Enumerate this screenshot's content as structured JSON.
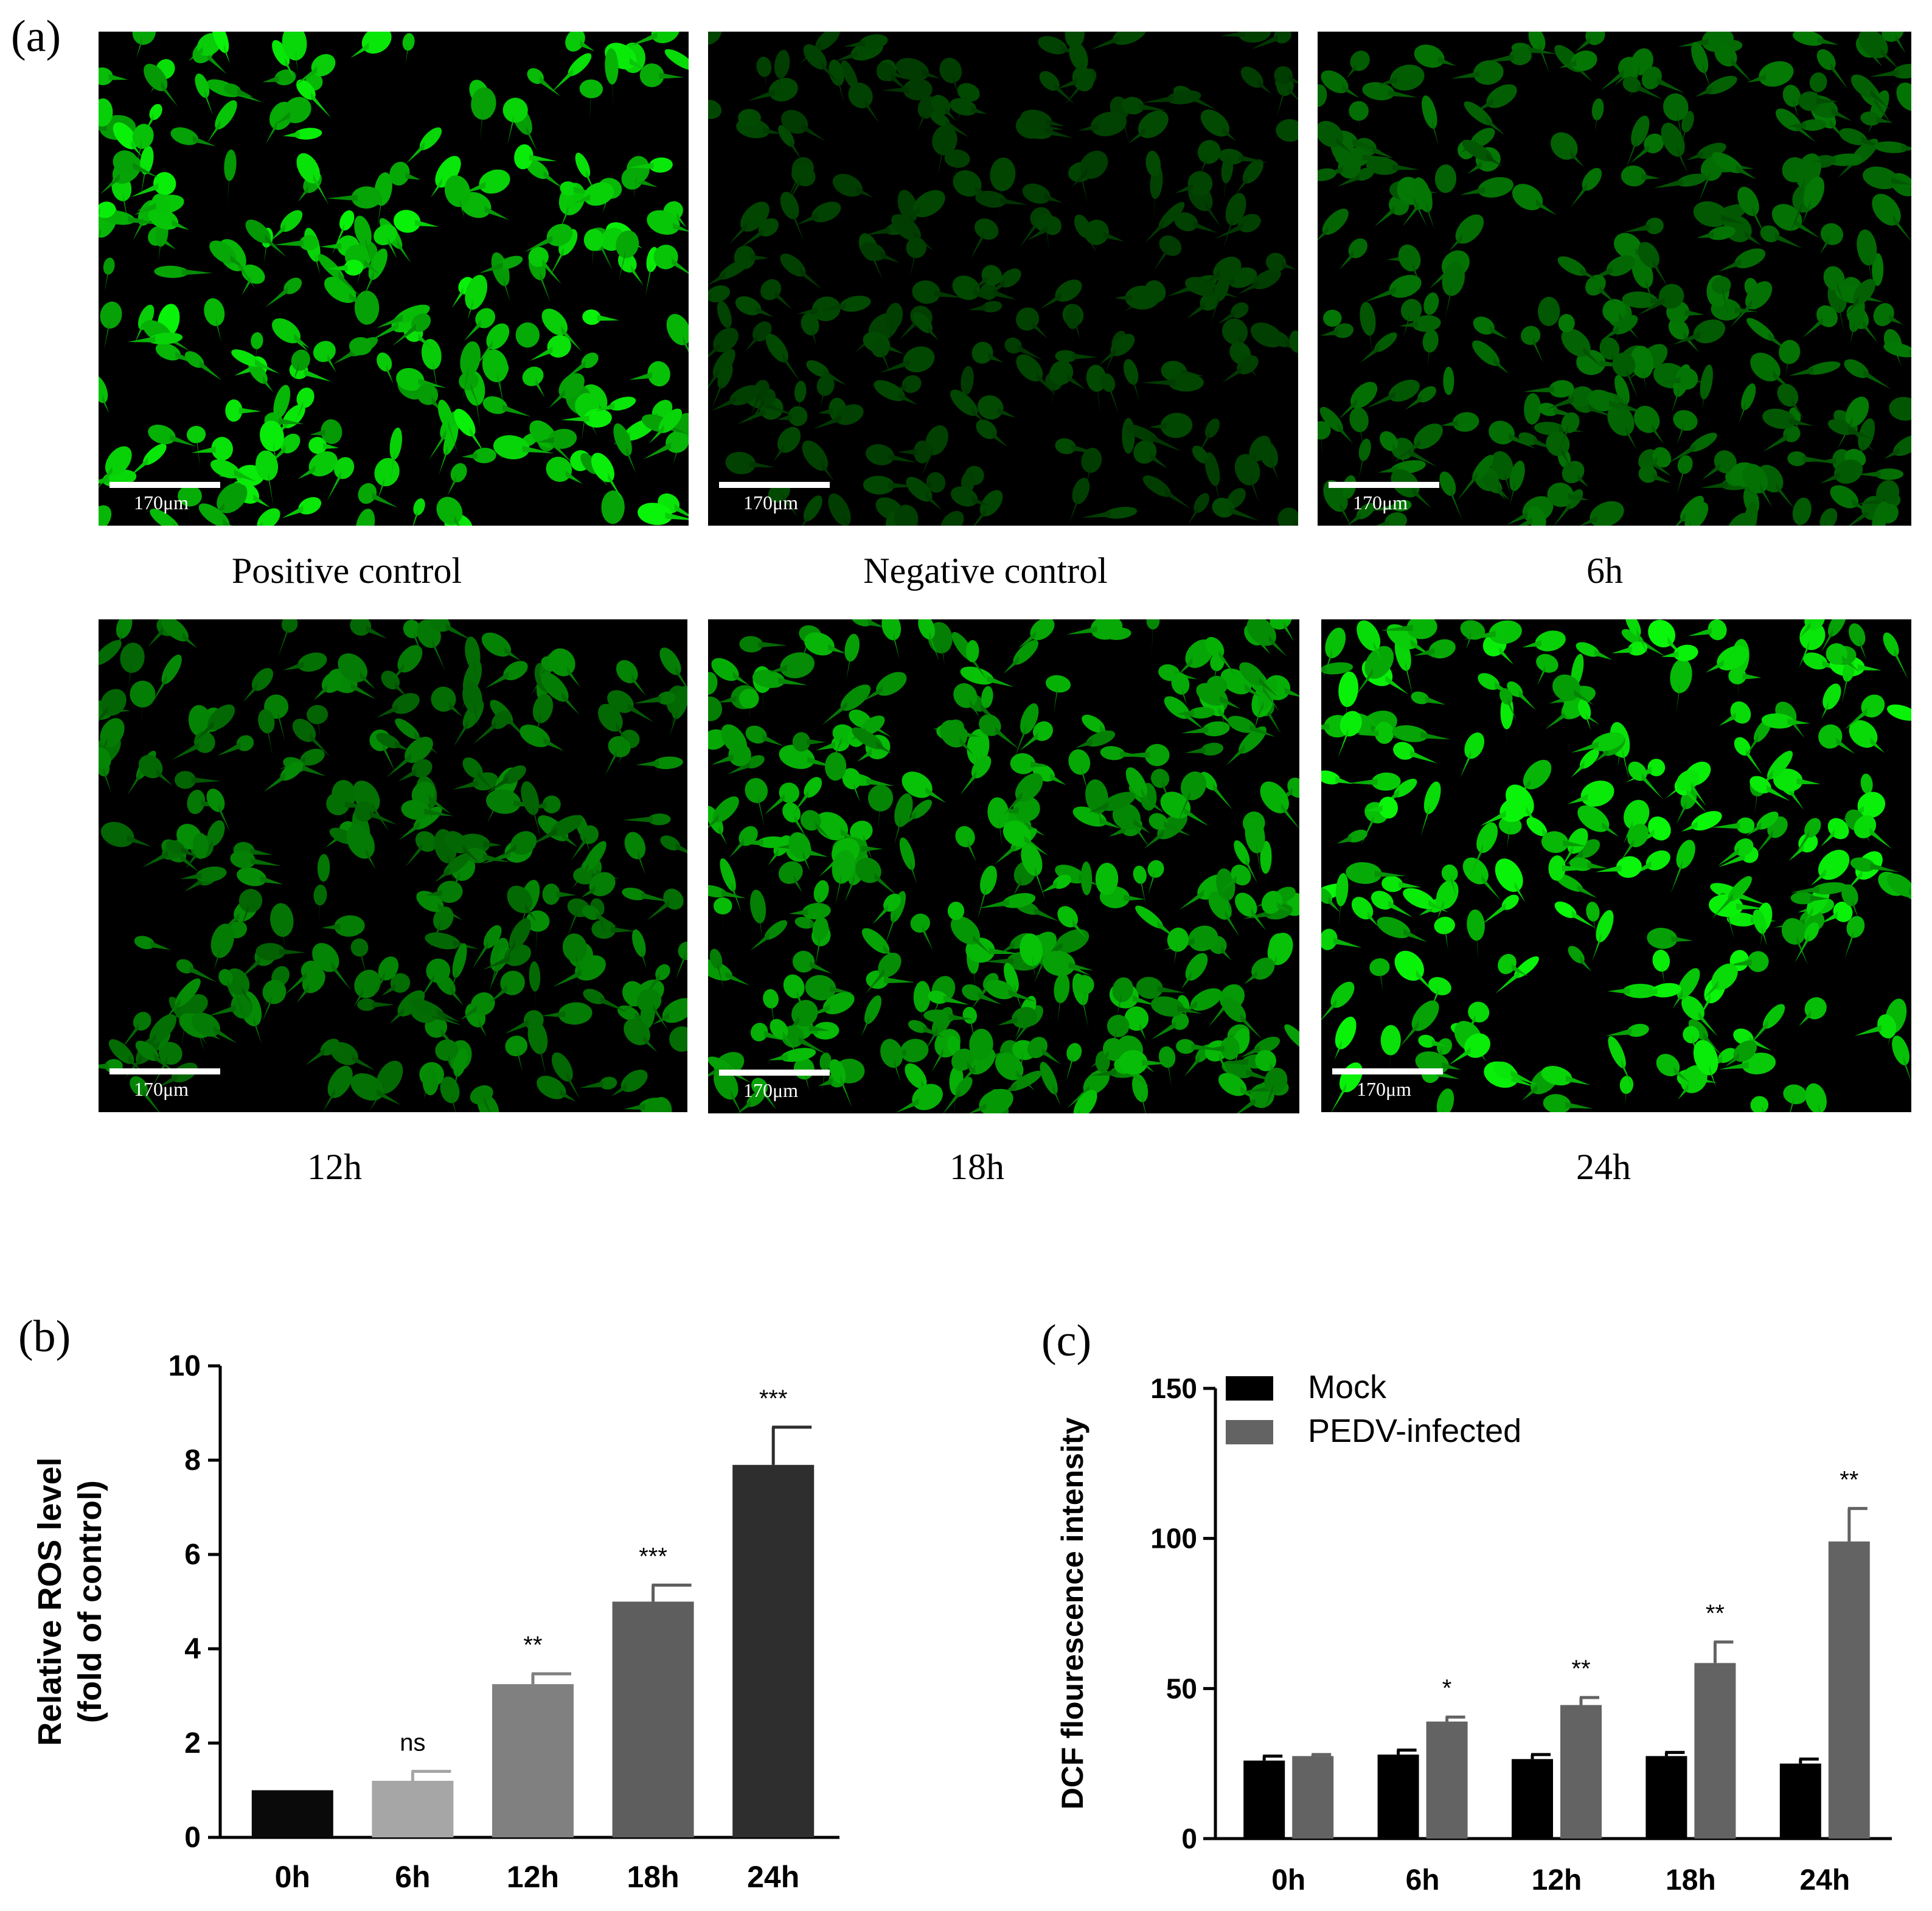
{
  "panel_a": {
    "letter": "(a)",
    "images": [
      {
        "caption": "Positive control",
        "scale_label": "170μm",
        "brightness": 0.95,
        "cell_count": 230,
        "seed": 11
      },
      {
        "caption": "Negative control",
        "scale_label": "170μm",
        "brightness": 0.16,
        "cell_count": 210,
        "seed": 23
      },
      {
        "caption": "6h",
        "scale_label": "170μm",
        "brightness": 0.38,
        "cell_count": 260,
        "seed": 37
      },
      {
        "caption": "12h",
        "scale_label": "170μm",
        "brightness": 0.48,
        "cell_count": 240,
        "seed": 41
      },
      {
        "caption": "18h",
        "scale_label": "170μm",
        "brightness": 0.72,
        "cell_count": 300,
        "seed": 53
      },
      {
        "caption": "24h",
        "scale_label": "170μm",
        "brightness": 0.97,
        "cell_count": 220,
        "seed": 67
      }
    ],
    "fluorescence_color": "#22dd22"
  },
  "chart_data": [
    {
      "id": "b",
      "letter": "(b)",
      "type": "bar",
      "categories": [
        "0h",
        "6h",
        "12h",
        "18h",
        "24h"
      ],
      "values": [
        1.0,
        1.2,
        3.25,
        5.0,
        7.9
      ],
      "errors": [
        0.0,
        0.2,
        0.22,
        0.35,
        0.8
      ],
      "significance": [
        "",
        "ns",
        "**",
        "***",
        "***"
      ],
      "bar_colors": [
        "#0a0a0a",
        "#a6a6a6",
        "#808080",
        "#5e5e5e",
        "#2e2e2e"
      ],
      "ylabel": "Relative ROS level\n(fold of control)",
      "ylim": [
        0,
        10
      ],
      "yticks": [
        0,
        2,
        4,
        6,
        8,
        10
      ],
      "grid": false
    },
    {
      "id": "c",
      "letter": "(c)",
      "type": "bar",
      "categories": [
        "0h",
        "6h",
        "12h",
        "18h",
        "24h"
      ],
      "series": [
        {
          "name": "Mock",
          "color": "#000000",
          "values": [
            26,
            28,
            26.5,
            27.5,
            25
          ],
          "errors": [
            1.5,
            1.5,
            1.5,
            1.2,
            1.5
          ]
        },
        {
          "name": "PEDV-infected",
          "color": "#636363",
          "values": [
            27.5,
            39,
            44.5,
            58.5,
            99
          ],
          "errors": [
            0.5,
            1.5,
            2.5,
            7,
            11
          ]
        }
      ],
      "significance": [
        "",
        "*",
        "**",
        "**",
        "**"
      ],
      "ylabel": "DCF flourescence intensity",
      "ylim": [
        0,
        150
      ],
      "yticks": [
        0,
        50,
        100,
        150
      ],
      "legend_position": "top-left",
      "grid": false
    }
  ]
}
